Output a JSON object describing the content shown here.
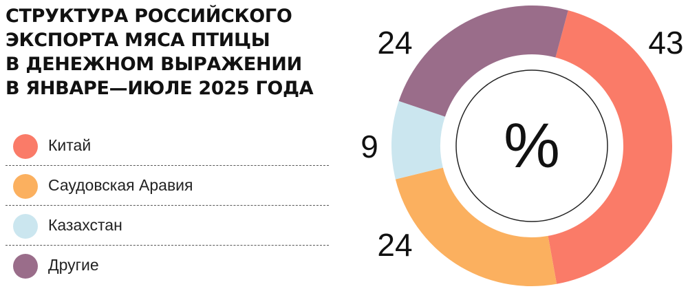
{
  "title_lines": [
    "СТРУКТУРА РОССИЙСКОГО",
    "ЭКСПОРТА МЯСА ПТИЦЫ",
    "В ДЕНЕЖНОМ ВЫРАЖЕНИИ",
    "В ЯНВАРЕ—ИЮЛЕ 2025 ГОДА"
  ],
  "legend": [
    {
      "label": "Китай",
      "color": "#fa7b68"
    },
    {
      "label": "Саудовская Аравия",
      "color": "#fbb05f"
    },
    {
      "label": "Казахстан",
      "color": "#cbe6ef"
    },
    {
      "label": "Другие",
      "color": "#9a6d8a"
    }
  ],
  "chart_data": {
    "type": "pie",
    "title": "СТРУКТУРА РОССИЙСКОГО ЭКСПОРТА МЯСА ПТИЦЫ В ДЕНЕЖНОМ ВЫРАЖЕНИИ В ЯНВАРЕ—ИЮЛЕ 2025 ГОДА",
    "center_label": "%",
    "categories": [
      "Китай",
      "Саудовская Аравия",
      "Казахстан",
      "Другие"
    ],
    "values": [
      43,
      24,
      9,
      24
    ],
    "value_labels": [
      "43",
      "24",
      "9",
      "24"
    ],
    "colors": [
      "#fa7b68",
      "#fbb05f",
      "#cbe6ef",
      "#9a6d8a"
    ],
    "donut": true,
    "start_angle_deg": 15,
    "direction": "clockwise",
    "legend_position": "left"
  }
}
